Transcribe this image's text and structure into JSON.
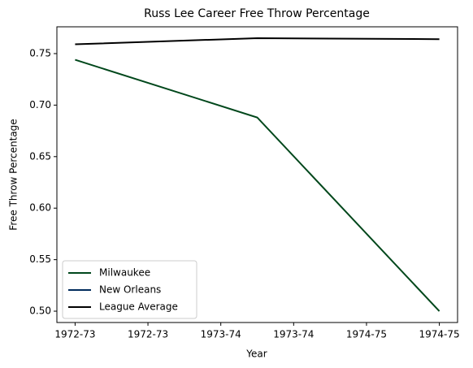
{
  "chart_data": {
    "type": "line",
    "title": "Russ Lee Career Free Throw Percentage",
    "xlabel": "Year",
    "ylabel": "Free Throw Percentage",
    "x": [
      0,
      1,
      2
    ],
    "series": [
      {
        "name": "Milwaukee",
        "color": "#00471b",
        "values": [
          0.744,
          0.688,
          0.5
        ]
      },
      {
        "name": "New Orleans",
        "color": "#002b5c",
        "values": [
          null,
          null,
          null
        ]
      },
      {
        "name": "League Average",
        "color": "#000000",
        "values": [
          0.759,
          0.765,
          0.764
        ]
      }
    ],
    "xlim": [
      -0.1,
      2.1
    ],
    "xticks": [
      {
        "value": 0,
        "label": "1972-73"
      },
      {
        "value": 0.4,
        "label": "1972-73"
      },
      {
        "value": 0.8,
        "label": "1973-74"
      },
      {
        "value": 1.2,
        "label": "1973-74"
      },
      {
        "value": 1.6,
        "label": "1974-75"
      },
      {
        "value": 2.0,
        "label": "1974-75"
      }
    ],
    "ylim": [
      0.489,
      0.776
    ],
    "yticks": [
      {
        "value": 0.5,
        "label": "0.50"
      },
      0.55,
      {
        "value": 0.6,
        "label": "0.60"
      },
      0.65,
      {
        "value": 0.7,
        "label": "0.70"
      },
      0.75
    ],
    "grid": false,
    "legend": "lower left"
  }
}
